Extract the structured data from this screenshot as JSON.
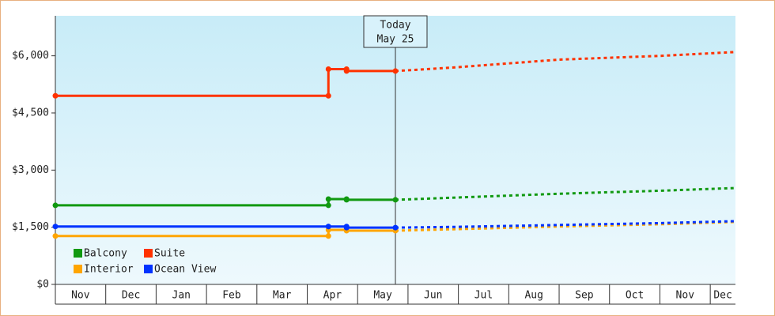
{
  "chart_data": {
    "type": "line",
    "categories": [
      "Nov",
      "Dec",
      "Jan",
      "Feb",
      "Mar",
      "Apr",
      "May",
      "Jun",
      "Jul",
      "Aug",
      "Sep",
      "Oct",
      "Nov",
      "Dec"
    ],
    "xlim": [
      0,
      13.5
    ],
    "ylim": [
      0,
      7050
    ],
    "yticks": [
      {
        "value": 0,
        "label": "$0"
      },
      {
        "value": 1500,
        "label": "$1,500"
      },
      {
        "value": 3000,
        "label": "$3,000"
      },
      {
        "value": 4500,
        "label": "$4,500"
      },
      {
        "value": 6000,
        "label": "$6,000"
      }
    ],
    "annotation": {
      "x": 6.75,
      "lines": [
        "Today",
        "May 25"
      ]
    },
    "x": [
      0,
      5.42,
      5.42,
      5.78,
      5.78,
      6.75
    ],
    "forecast_x": [
      6.75,
      7.97,
      10.0,
      12.04,
      13.5
    ],
    "series": [
      {
        "name": "Balcony",
        "color": "#119911",
        "values": [
          2075,
          2075,
          2240,
          2240,
          2220,
          2220
        ],
        "forecast_values": [
          2220,
          2280,
          2380,
          2460,
          2530
        ]
      },
      {
        "name": "Suite",
        "color": "#ff3300",
        "values": [
          4950,
          4950,
          5650,
          5650,
          5600,
          5600
        ],
        "forecast_values": [
          5600,
          5700,
          5900,
          6000,
          6100
        ]
      },
      {
        "name": "Interior",
        "color": "#ffa500",
        "values": [
          1270,
          1270,
          1430,
          1430,
          1410,
          1410
        ],
        "forecast_values": [
          1410,
          1450,
          1520,
          1580,
          1640
        ]
      },
      {
        "name": "Ocean View",
        "color": "#0033ff",
        "values": [
          1520,
          1520,
          1520,
          1520,
          1490,
          1490
        ],
        "forecast_values": [
          1490,
          1510,
          1560,
          1610,
          1660
        ]
      }
    ]
  }
}
